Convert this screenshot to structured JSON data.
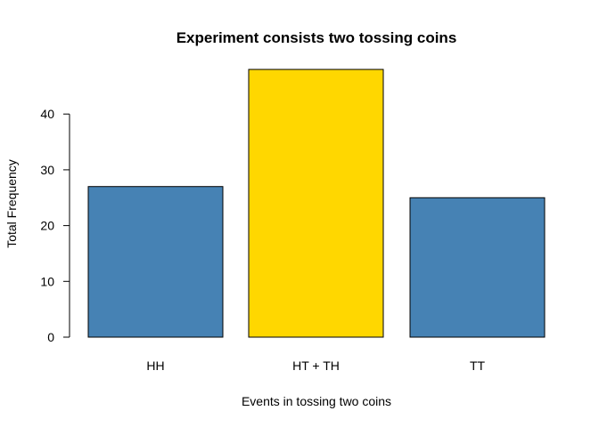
{
  "chart_data": {
    "type": "bar",
    "title": "Experiment consists two tossing coins",
    "xlabel": "Events in tossing two coins",
    "ylabel": "Total Frequency",
    "categories": [
      "HH",
      "HT + TH",
      "TT"
    ],
    "values": [
      27,
      48,
      25
    ],
    "bar_colors": [
      "#4682B4",
      "#FFD700",
      "#4682B4"
    ],
    "ylim": [
      0,
      48
    ],
    "yticks": [
      0,
      10,
      20,
      30,
      40
    ],
    "grid": false,
    "legend": "none"
  }
}
